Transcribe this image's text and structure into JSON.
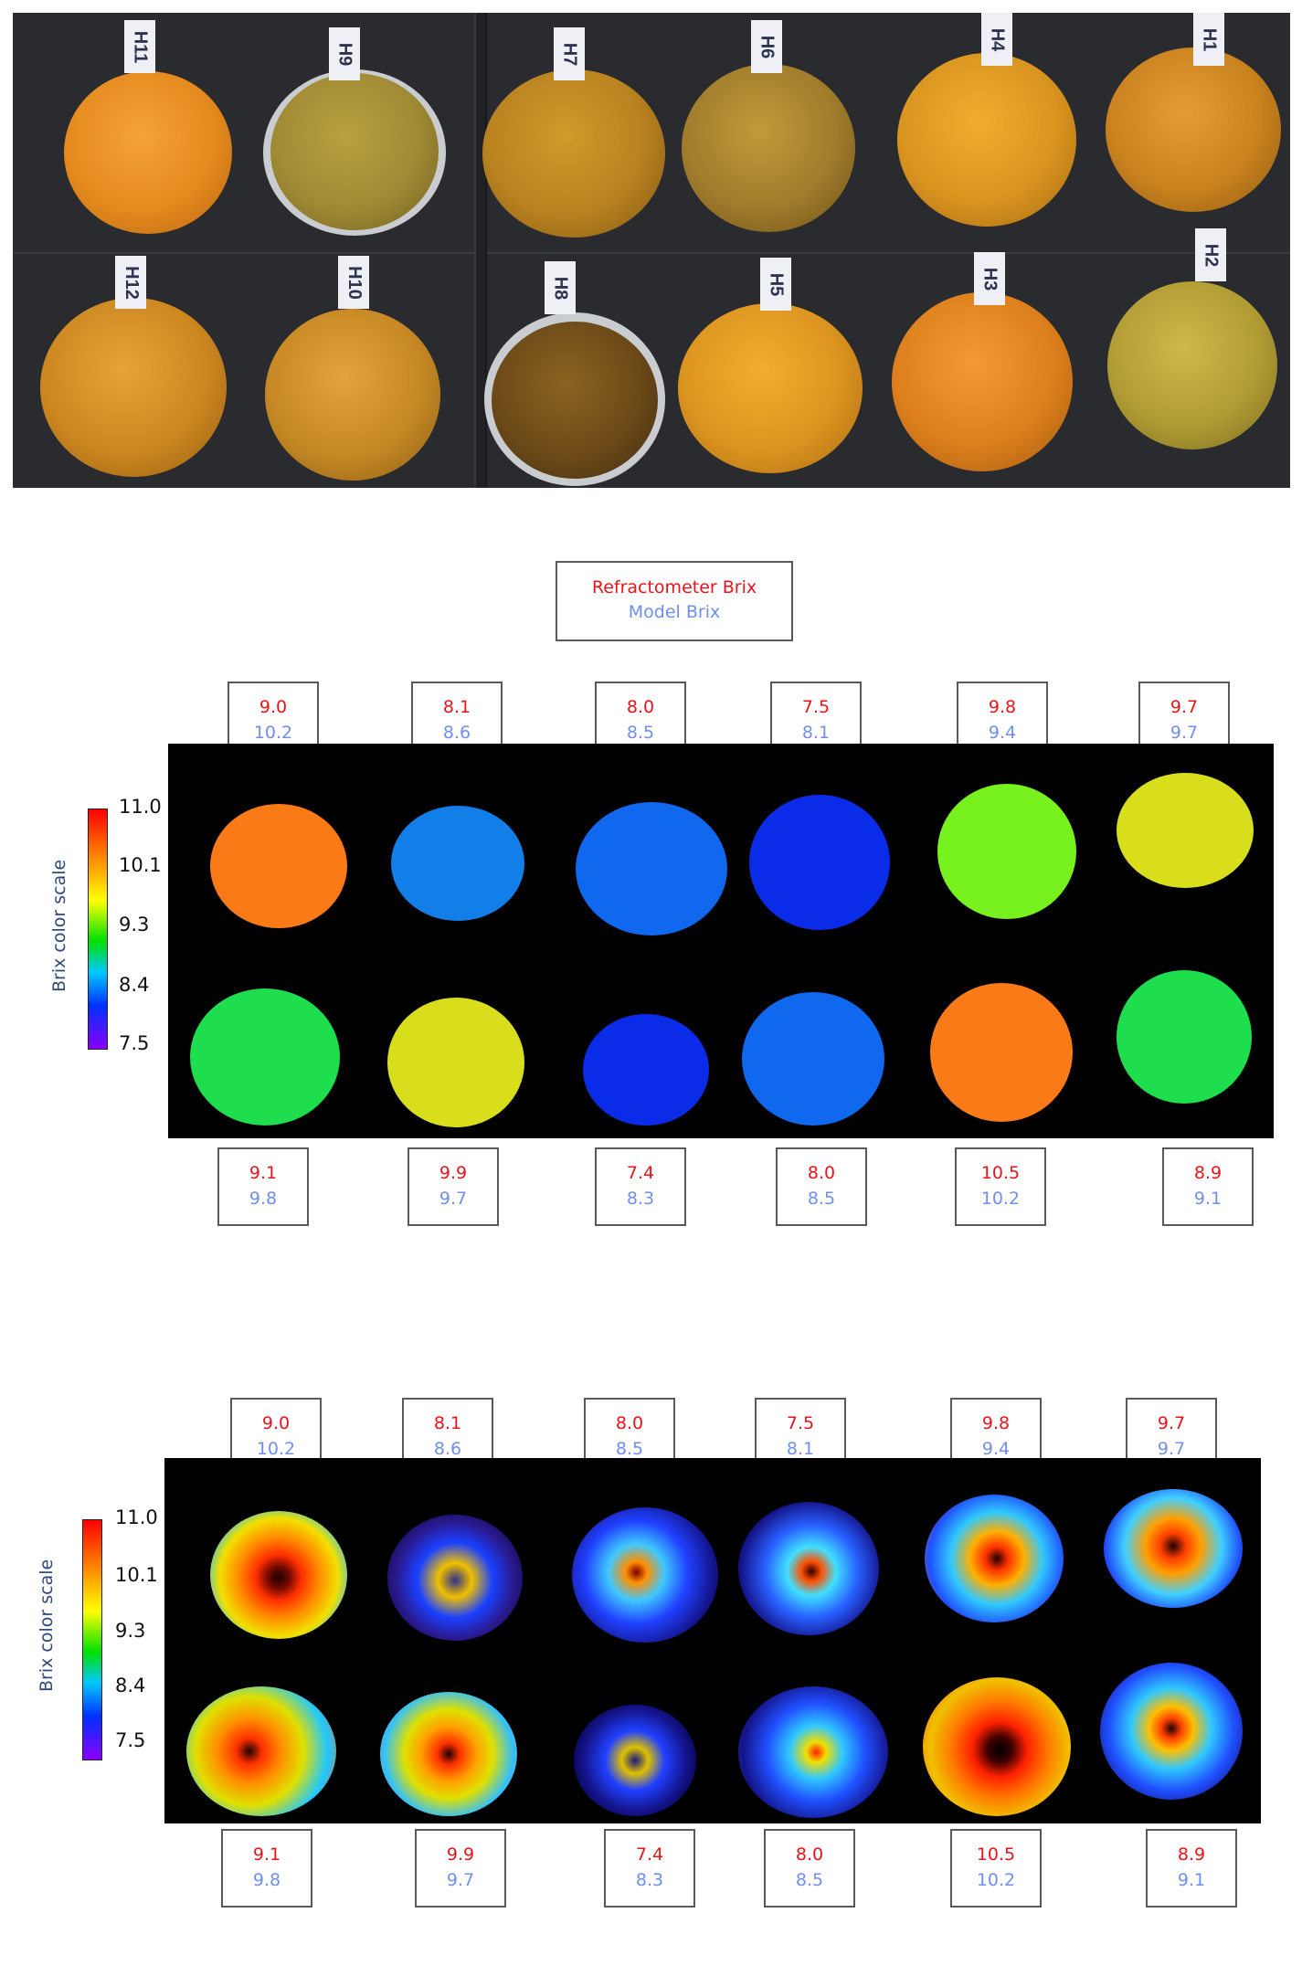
{
  "photo": {
    "tags": [
      "H11",
      "H9",
      "H7",
      "H6",
      "H4",
      "H1",
      "H12",
      "H10",
      "H8",
      "H5",
      "H3",
      "H2"
    ]
  },
  "legend": {
    "refractometer_label": "Refractometer Brix",
    "model_label": "Model Brix"
  },
  "colors": {
    "refractometer": "#e8131b",
    "model": "#6f8ff0"
  },
  "color_scale": {
    "title": "Brix color scale",
    "ticks": [
      "11.0",
      "10.1",
      "9.3",
      "8.4",
      "7.5"
    ]
  },
  "panel_top": {
    "top_row": [
      {
        "refractometer": "9.0",
        "model": "10.2"
      },
      {
        "refractometer": "8.1",
        "model": "8.6"
      },
      {
        "refractometer": "8.0",
        "model": "8.5"
      },
      {
        "refractometer": "7.5",
        "model": "8.1"
      },
      {
        "refractometer": "9.8",
        "model": "9.4"
      },
      {
        "refractometer": "9.7",
        "model": "9.7"
      }
    ],
    "bottom_row": [
      {
        "refractometer": "9.1",
        "model": "9.8"
      },
      {
        "refractometer": "9.9",
        "model": "9.7"
      },
      {
        "refractometer": "7.4",
        "model": "8.3"
      },
      {
        "refractometer": "8.0",
        "model": "8.5"
      },
      {
        "refractometer": "10.5",
        "model": "10.2"
      },
      {
        "refractometer": "8.9",
        "model": "9.1"
      }
    ]
  },
  "panel_bottom": {
    "top_row": [
      {
        "refractometer": "9.0",
        "model": "10.2"
      },
      {
        "refractometer": "8.1",
        "model": "8.6"
      },
      {
        "refractometer": "8.0",
        "model": "8.5"
      },
      {
        "refractometer": "7.5",
        "model": "8.1"
      },
      {
        "refractometer": "9.8",
        "model": "9.4"
      },
      {
        "refractometer": "9.7",
        "model": "9.7"
      }
    ],
    "bottom_row": [
      {
        "refractometer": "9.1",
        "model": "9.8"
      },
      {
        "refractometer": "9.9",
        "model": "9.7"
      },
      {
        "refractometer": "7.4",
        "model": "8.3"
      },
      {
        "refractometer": "8.0",
        "model": "8.5"
      },
      {
        "refractometer": "10.5",
        "model": "10.2"
      },
      {
        "refractometer": "8.9",
        "model": "9.1"
      }
    ]
  }
}
